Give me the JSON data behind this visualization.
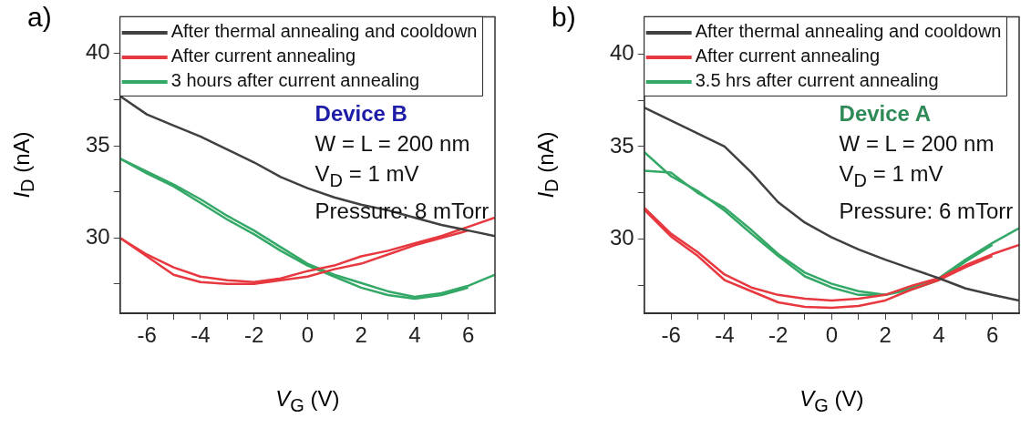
{
  "chart_data": [
    {
      "type": "line",
      "title": "a)",
      "xlabel": "V$_{G}$ (V)",
      "ylabel": "I$_{D}$ (nA)",
      "xlim": [
        -7,
        7
      ],
      "ylim": [
        25.9,
        42
      ],
      "xticks": [
        -6,
        {
          "value": -5,
          "label": null
        },
        -4,
        {
          "value": -3,
          "label": null
        },
        -2,
        {
          "value": -1,
          "label": null
        },
        0,
        {
          "value": 1,
          "label": null
        },
        2,
        {
          "value": 3,
          "label": null
        },
        4,
        {
          "value": 5,
          "label": null
        },
        6
      ],
      "yticks": [
        {
          "value": 27.5,
          "label": null
        },
        30,
        {
          "value": 32.5,
          "label": null
        },
        35,
        {
          "value": 37.5,
          "label": null
        },
        40
      ],
      "grid": false,
      "legend": "top left",
      "annotations": [
        "Device B",
        "W = L = 200 nm",
        "V$_{D}$ = 1 mV",
        "Pressure: 8 mTorr"
      ],
      "series": [
        {
          "name": "After thermal annealing and cooldown",
          "color": "#404040",
          "x": [
            -7,
            -6,
            -5,
            -4,
            -3,
            -2,
            -1,
            0,
            1,
            2,
            3,
            4,
            5,
            6,
            7
          ],
          "values": [
            37.7,
            36.7,
            36.1,
            35.5,
            34.8,
            34.1,
            33.3,
            32.7,
            32.2,
            31.8,
            31.5,
            31.1,
            30.7,
            30.4,
            30.1
          ]
        },
        {
          "name": "After current annealing",
          "color": "#e8383f",
          "x": [
            -7,
            -6,
            -5,
            -4,
            -3,
            -2,
            -1,
            0,
            1,
            2,
            3,
            4,
            5,
            6,
            7
          ],
          "values": [
            30.0,
            29.1,
            28.4,
            27.9,
            27.7,
            27.6,
            27.8,
            28.2,
            28.5,
            29.0,
            29.3,
            29.7,
            30.1,
            30.6,
            31.1
          ]
        },
        {
          "color": "#e8383f",
          "x": [
            -7,
            -6,
            -5,
            -4,
            -3,
            -2,
            -1,
            0,
            1,
            2,
            3,
            4,
            5,
            6
          ],
          "values": [
            30.0,
            29.0,
            28.0,
            27.6,
            27.5,
            27.5,
            27.7,
            27.9,
            28.3,
            28.6,
            29.1,
            29.6,
            30.0,
            30.4
          ]
        },
        {
          "name": "3 hours after current annealing",
          "color": "#34a866",
          "x": [
            -7,
            -6,
            -5,
            -4,
            -3,
            -2,
            -1,
            0,
            1,
            2,
            3,
            4,
            5,
            6,
            7
          ],
          "values": [
            34.3,
            33.6,
            32.9,
            32.1,
            31.2,
            30.4,
            29.5,
            28.6,
            28.0,
            27.55,
            27.1,
            26.8,
            27.0,
            27.4,
            28.0
          ]
        },
        {
          "color": "#34a866",
          "x": [
            -7,
            -6,
            -5,
            -4,
            -3,
            -2,
            -1,
            0,
            1,
            2,
            3,
            4,
            5,
            6
          ],
          "values": [
            34.3,
            33.5,
            32.8,
            31.9,
            31.0,
            30.2,
            29.3,
            28.5,
            27.9,
            27.3,
            26.9,
            26.7,
            26.9,
            27.3
          ]
        }
      ]
    },
    {
      "type": "line",
      "title": "b)",
      "xlabel": "V$_{G}$ (V)",
      "ylabel": "I$_{D}$ (nA)",
      "xlim": [
        -7,
        7
      ],
      "ylim": [
        26,
        42
      ],
      "xticks": [
        -6,
        {
          "value": -5,
          "label": null
        },
        -4,
        {
          "value": -3,
          "label": null
        },
        -2,
        {
          "value": -1,
          "label": null
        },
        0,
        {
          "value": 1,
          "label": null
        },
        2,
        {
          "value": 3,
          "label": null
        },
        4,
        {
          "value": 5,
          "label": null
        },
        6
      ],
      "yticks": [
        {
          "value": 27.5,
          "label": null
        },
        30,
        {
          "value": 32.5,
          "label": null
        },
        35,
        {
          "value": 37.5,
          "label": null
        },
        40
      ],
      "grid": false,
      "legend": "top left",
      "annotations": [
        "Device A",
        "W = L = 200 nm",
        "V$_{D}$ = 1 mV",
        "Pressure: 6 mTorr"
      ],
      "series": [
        {
          "name": "After thermal annealing and cooldown",
          "color": "#404040",
          "x": [
            -7,
            -6,
            -5,
            -4,
            -3,
            -2,
            -1,
            0,
            1,
            2,
            3,
            4,
            5,
            6,
            7
          ],
          "values": [
            37.1,
            36.4,
            35.7,
            35.0,
            33.6,
            32.0,
            30.9,
            30.1,
            29.45,
            28.9,
            28.4,
            27.9,
            27.35,
            27.0,
            26.7
          ]
        },
        {
          "name": "After current annealing",
          "color": "#e8383f",
          "x": [
            -7,
            -6,
            -5,
            -4,
            -3,
            -2,
            -1,
            0,
            1,
            2,
            3,
            4,
            5,
            6,
            7
          ],
          "values": [
            31.7,
            30.3,
            29.3,
            28.1,
            27.4,
            27.0,
            26.8,
            26.7,
            26.8,
            27.0,
            27.5,
            27.9,
            28.6,
            29.2,
            29.7
          ]
        },
        {
          "color": "#e8383f",
          "x": [
            -7,
            -6,
            -5,
            -4,
            -3,
            -2,
            -1,
            0,
            1,
            2,
            3,
            4,
            5,
            6
          ],
          "values": [
            31.6,
            30.15,
            29.1,
            27.8,
            27.2,
            26.6,
            26.35,
            26.3,
            26.4,
            26.7,
            27.3,
            27.8,
            28.5,
            29.1
          ]
        },
        {
          "name": "3.5 hrs after current annealing",
          "color": "#34a866",
          "x": [
            -7,
            -6,
            -5,
            -4,
            -3,
            -2,
            -1,
            0,
            1,
            2,
            3,
            4,
            5,
            6,
            7
          ],
          "values": [
            34.7,
            33.4,
            32.6,
            31.55,
            30.3,
            29.1,
            28.0,
            27.4,
            27.0,
            27.0,
            27.4,
            27.9,
            28.9,
            29.8,
            30.6
          ]
        },
        {
          "color": "#34a866",
          "x": [
            -7,
            -6,
            -5,
            -4,
            -3,
            -2,
            -1,
            0,
            1,
            2,
            3,
            4,
            5,
            6
          ],
          "values": [
            33.7,
            33.6,
            32.5,
            31.7,
            30.5,
            29.2,
            28.2,
            27.6,
            27.2,
            27.0,
            27.3,
            27.8,
            28.8,
            29.7
          ]
        }
      ]
    }
  ]
}
